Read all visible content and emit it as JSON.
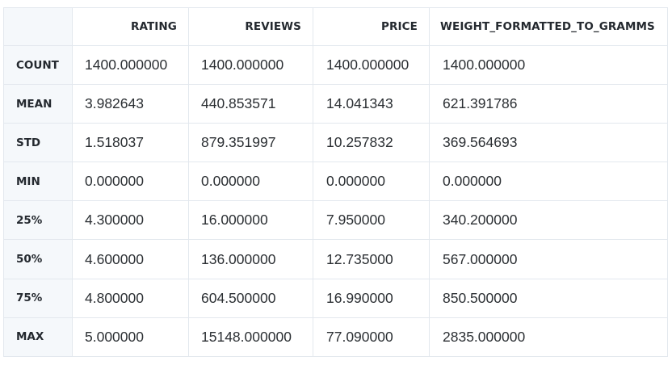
{
  "table": {
    "columns": [
      "RATING",
      "REVIEWS",
      "PRICE",
      "WEIGHT_FORMATTED_TO_GRAMMS"
    ],
    "rows": [
      {
        "label": "COUNT",
        "values": [
          "1400.000000",
          "1400.000000",
          "1400.000000",
          "1400.000000"
        ]
      },
      {
        "label": "MEAN",
        "values": [
          "3.982643",
          "440.853571",
          "14.041343",
          "621.391786"
        ]
      },
      {
        "label": "STD",
        "values": [
          "1.518037",
          "879.351997",
          "10.257832",
          "369.564693"
        ]
      },
      {
        "label": "MIN",
        "values": [
          "0.000000",
          "0.000000",
          "0.000000",
          "0.000000"
        ]
      },
      {
        "label": "25%",
        "values": [
          "4.300000",
          "16.000000",
          "7.950000",
          "340.200000"
        ]
      },
      {
        "label": "50%",
        "values": [
          "4.600000",
          "136.000000",
          "12.735000",
          "567.000000"
        ]
      },
      {
        "label": "75%",
        "values": [
          "4.800000",
          "604.500000",
          "16.990000",
          "850.500000"
        ]
      },
      {
        "label": "MAX",
        "values": [
          "5.000000",
          "15148.000000",
          "77.090000",
          "2835.000000"
        ]
      }
    ]
  }
}
